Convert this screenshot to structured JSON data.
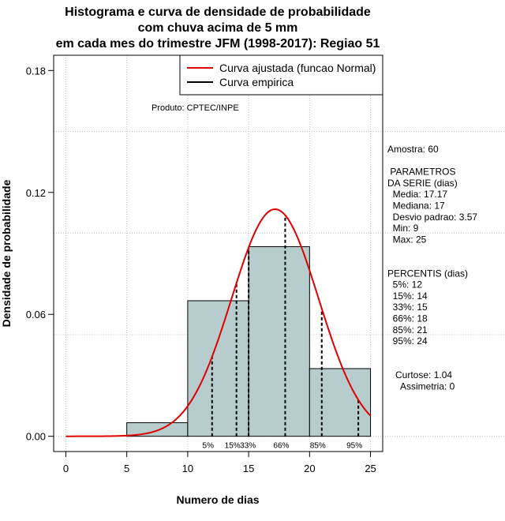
{
  "chart_data": {
    "type": "histogram",
    "title_lines": [
      "Histograma e curva de densidade de probabilidade",
      "com chuva acima de 5 mm",
      "em cada mes do trimestre JFM (1998-2017): Regiao 51"
    ],
    "xlabel": "Numero de dias",
    "ylabel": "Densidade de probabilidade",
    "xlim": [
      -1,
      26
    ],
    "ylim": [
      -0.0075,
      0.1875
    ],
    "xticks": [
      0,
      5,
      10,
      15,
      20,
      25
    ],
    "yticks": [
      0.0,
      0.06,
      0.12,
      0.18
    ],
    "ytick_labels": [
      "0.00",
      "0.06",
      "0.12",
      "0.18"
    ],
    "grid_x": [
      0,
      5,
      10,
      15,
      20,
      25
    ],
    "grid_y": [
      0.0,
      0.05,
      0.1,
      0.15
    ],
    "bins": [
      {
        "x0": 5,
        "x1": 10,
        "density": 0.0067
      },
      {
        "x0": 10,
        "x1": 15,
        "density": 0.0667
      },
      {
        "x0": 15,
        "x1": 20,
        "density": 0.0933
      },
      {
        "x0": 20,
        "x1": 25,
        "density": 0.0333
      }
    ],
    "bar_color": "#b7cdcd",
    "normal_curve": {
      "mean": 17.17,
      "sd": 3.57,
      "x_from": 0,
      "x_to": 25,
      "color": "#e00000"
    },
    "percentiles": [
      {
        "label": "5%",
        "x": 12
      },
      {
        "label": "15%",
        "x": 14
      },
      {
        "label": "33%",
        "x": 15
      },
      {
        "label": "66%",
        "x": 18
      },
      {
        "label": "85%",
        "x": 21
      },
      {
        "label": "95%",
        "x": 24
      }
    ],
    "legend": [
      {
        "label": "Curva ajustada (funcao Normal)",
        "color": "#e00000"
      },
      {
        "label": "Curva empirica",
        "color": "#000000"
      }
    ],
    "legend_position": "top-right"
  },
  "annotations": {
    "product": "Produto: CPTEC/INPE",
    "stats_lines": [
      "Amostra: 60",
      "",
      " PARAMETROS",
      "DA SERIE (dias)",
      "  Media: 17.17",
      "  Mediana: 17",
      "  Desvio padrao: 3.57",
      "  Min: 9",
      "  Max: 25",
      "",
      "",
      "PERCENTIS (dias)",
      "  5%: 12",
      "  15%: 14",
      "  33%: 15",
      "  66%: 18",
      "  85%: 21",
      "  95%: 24",
      "",
      "",
      "   Curtose: 1.04",
      "     Assimetria: 0"
    ]
  }
}
